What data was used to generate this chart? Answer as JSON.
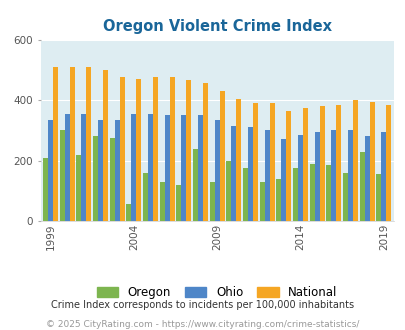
{
  "title": "Oregon Violent Crime Index",
  "years": [
    1999,
    2000,
    2001,
    2002,
    2003,
    2004,
    2005,
    2006,
    2007,
    2008,
    2009,
    2010,
    2011,
    2012,
    2013,
    2014,
    2015,
    2016,
    2017,
    2018,
    2019
  ],
  "oregon": [
    210,
    300,
    220,
    280,
    275,
    55,
    160,
    130,
    120,
    240,
    130,
    200,
    175,
    130,
    140,
    175,
    190,
    185,
    160,
    230,
    155
  ],
  "ohio": [
    335,
    355,
    355,
    335,
    335,
    355,
    355,
    350,
    350,
    350,
    335,
    315,
    310,
    300,
    270,
    285,
    295,
    300,
    300,
    280,
    295
  ],
  "national": [
    510,
    510,
    510,
    500,
    475,
    470,
    475,
    475,
    465,
    455,
    430,
    405,
    390,
    390,
    365,
    375,
    380,
    385,
    400,
    395,
    385
  ],
  "oregon_color": "#7db54f",
  "ohio_color": "#4e86c8",
  "national_color": "#f5a623",
  "bg_color": "#deedf2",
  "ylim": [
    0,
    600
  ],
  "yticks": [
    0,
    200,
    400,
    600
  ],
  "xtick_years": [
    1999,
    2004,
    2009,
    2014,
    2019
  ],
  "legend_labels": [
    "Oregon",
    "Ohio",
    "National"
  ],
  "footnote1": "Crime Index corresponds to incidents per 100,000 inhabitants",
  "footnote2": "© 2025 CityRating.com - https://www.cityrating.com/crime-statistics/",
  "title_color": "#1a6699",
  "footnote1_color": "#333333",
  "footnote2_color": "#999999"
}
